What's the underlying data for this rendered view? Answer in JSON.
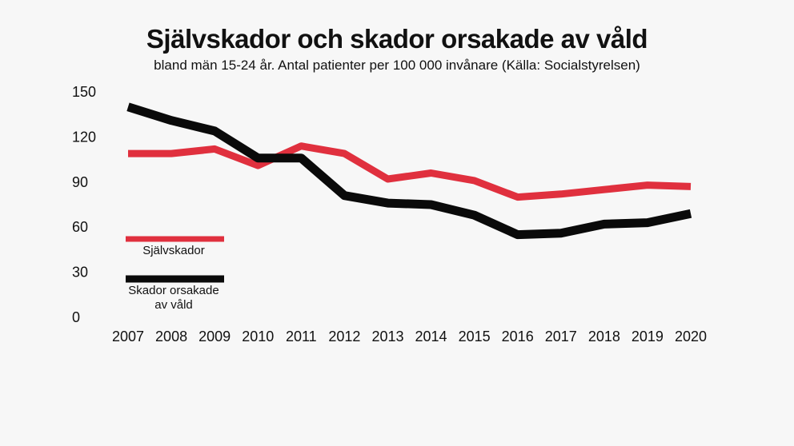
{
  "chart_data": {
    "type": "line",
    "title": "Självskador och skador orsakade av våld",
    "subtitle": "bland män 15-24 år. Antal patienter per 100 000 invånare (Källa: Socialstyrelsen)",
    "x": [
      "2007",
      "2008",
      "2009",
      "2010",
      "2011",
      "2012",
      "2013",
      "2014",
      "2015",
      "2016",
      "2017",
      "2018",
      "2019",
      "2020"
    ],
    "yticks": [
      "150",
      "120",
      "90",
      "60",
      "30",
      "0"
    ],
    "ylim": [
      0,
      150
    ],
    "grid": false,
    "legend_position": "left",
    "series": [
      {
        "name": "Självskador",
        "legend_lines": [
          "Självskador"
        ],
        "color": "#e0303e",
        "values": [
          109,
          109,
          112,
          101,
          114,
          109,
          92,
          96,
          91,
          80,
          82,
          85,
          88,
          87
        ]
      },
      {
        "name": "Skador orsakade av våld",
        "legend_lines": [
          "Skador orsakade",
          "av våld"
        ],
        "color": "#0a0a0a",
        "values": [
          140,
          131,
          124,
          106,
          106,
          81,
          76,
          75,
          68,
          55,
          56,
          62,
          63,
          69
        ]
      }
    ]
  }
}
